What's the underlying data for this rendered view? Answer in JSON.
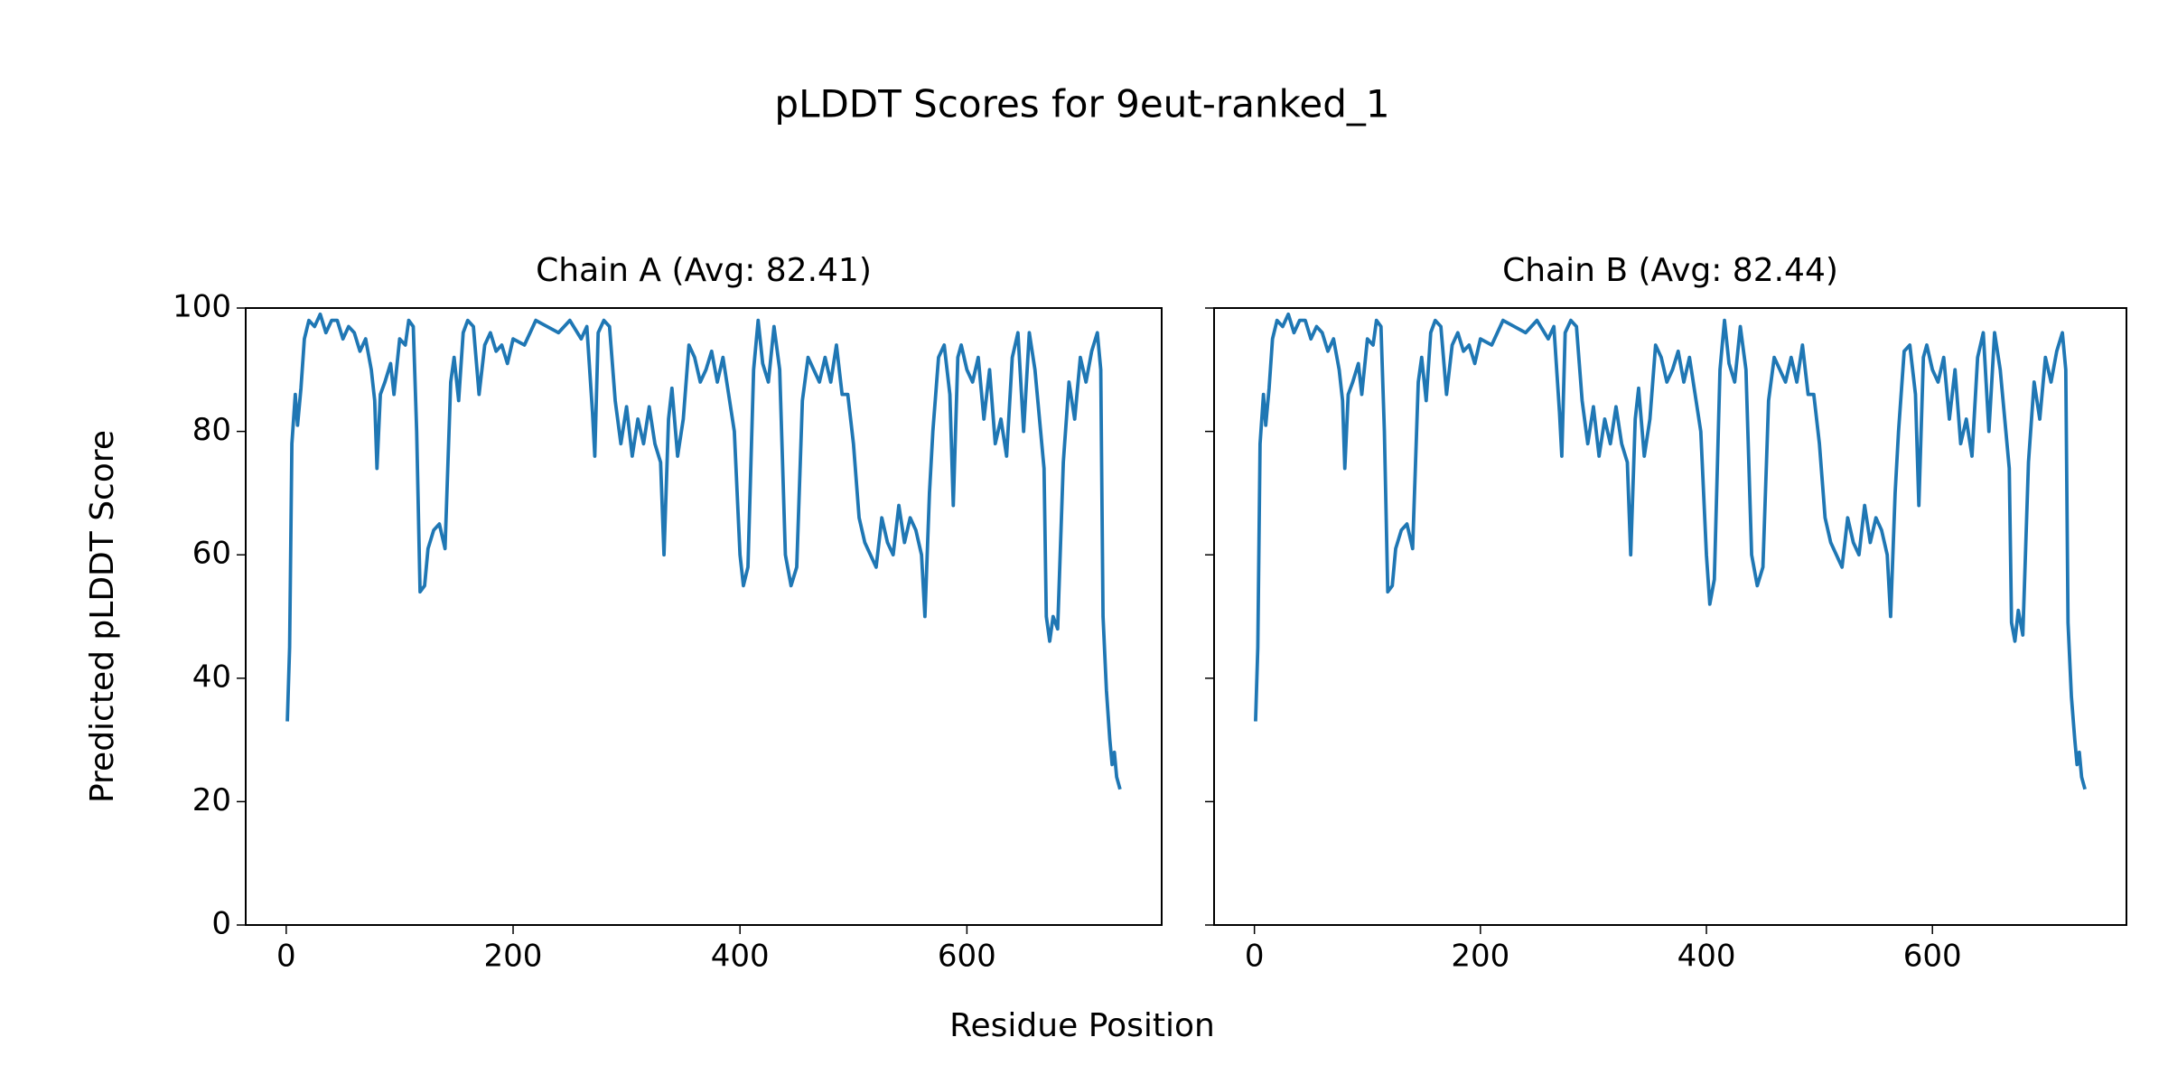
{
  "title": "pLDDT Scores for 9eut-ranked_1",
  "xlabel": "Residue Position",
  "chart_data": [
    {
      "type": "line",
      "title": "Chain A (Avg: 82.41)",
      "ylabel": "Predicted pLDDT Score",
      "color": "#1f77b4",
      "xlim": [
        -35.7,
        771.7
      ],
      "xticks": [
        0,
        200,
        400,
        600
      ],
      "ylim": [
        0,
        100
      ],
      "yticks": [
        0,
        20,
        40,
        60,
        80,
        100
      ],
      "show_ytick_labels": true,
      "x": [
        1,
        3,
        5,
        8,
        10,
        13,
        16,
        20,
        25,
        30,
        35,
        40,
        45,
        50,
        55,
        60,
        65,
        70,
        75,
        78,
        80,
        83,
        87,
        92,
        95,
        100,
        105,
        108,
        112,
        115,
        118,
        122,
        125,
        130,
        135,
        140,
        145,
        148,
        152,
        156,
        160,
        165,
        170,
        175,
        180,
        185,
        190,
        195,
        200,
        210,
        220,
        230,
        240,
        250,
        260,
        265,
        270,
        272,
        275,
        280,
        285,
        290,
        295,
        300,
        305,
        310,
        315,
        320,
        325,
        330,
        333,
        337,
        340,
        345,
        350,
        355,
        360,
        365,
        370,
        375,
        380,
        385,
        390,
        395,
        400,
        403,
        407,
        412,
        416,
        420,
        425,
        430,
        435,
        440,
        445,
        450,
        455,
        460,
        465,
        470,
        475,
        480,
        485,
        490,
        495,
        500,
        505,
        510,
        515,
        520,
        525,
        530,
        535,
        540,
        545,
        550,
        555,
        560,
        563,
        567,
        570,
        575,
        580,
        585,
        588,
        592,
        595,
        600,
        605,
        610,
        615,
        620,
        625,
        630,
        635,
        640,
        645,
        650,
        655,
        660,
        665,
        668,
        670,
        673,
        676,
        680,
        685,
        690,
        695,
        700,
        705,
        710,
        715,
        718,
        720,
        723,
        726,
        728,
        730,
        732,
        735
      ],
      "values": [
        33,
        45,
        78,
        86,
        81,
        87,
        95,
        98,
        97,
        99,
        96,
        98,
        98,
        95,
        97,
        96,
        93,
        95,
        90,
        85,
        74,
        86,
        88,
        91,
        86,
        95,
        94,
        98,
        97,
        80,
        54,
        55,
        61,
        64,
        65,
        61,
        88,
        92,
        85,
        96,
        98,
        97,
        86,
        94,
        96,
        93,
        94,
        91,
        95,
        94,
        98,
        97,
        96,
        98,
        95,
        97,
        83,
        76,
        96,
        98,
        97,
        85,
        78,
        84,
        76,
        82,
        78,
        84,
        78,
        75,
        60,
        82,
        87,
        76,
        82,
        94,
        92,
        88,
        90,
        93,
        88,
        92,
        86,
        80,
        60,
        55,
        58,
        90,
        98,
        91,
        88,
        97,
        90,
        60,
        55,
        58,
        85,
        92,
        90,
        88,
        92,
        88,
        94,
        86,
        86,
        78,
        66,
        62,
        60,
        58,
        66,
        62,
        60,
        68,
        62,
        66,
        64,
        60,
        50,
        70,
        80,
        92,
        94,
        86,
        68,
        92,
        94,
        90,
        88,
        92,
        82,
        90,
        78,
        82,
        76,
        92,
        96,
        80,
        96,
        90,
        80,
        74,
        50,
        46,
        50,
        48,
        75,
        88,
        82,
        92,
        88,
        93,
        96,
        90,
        50,
        38,
        30,
        26,
        28,
        24,
        22
      ]
    },
    {
      "type": "line",
      "title": "Chain B (Avg: 82.44)",
      "color": "#1f77b4",
      "xlim": [
        -35.7,
        771.7
      ],
      "xticks": [
        0,
        200,
        400,
        600
      ],
      "ylim": [
        0,
        100
      ],
      "yticks": [
        0,
        20,
        40,
        60,
        80,
        100
      ],
      "show_ytick_labels": false,
      "x": [
        1,
        3,
        5,
        8,
        10,
        13,
        16,
        20,
        25,
        30,
        35,
        40,
        45,
        50,
        55,
        60,
        65,
        70,
        75,
        78,
        80,
        83,
        87,
        92,
        95,
        100,
        105,
        108,
        112,
        115,
        118,
        122,
        125,
        130,
        135,
        140,
        145,
        148,
        152,
        156,
        160,
        165,
        170,
        175,
        180,
        185,
        190,
        195,
        200,
        210,
        220,
        230,
        240,
        250,
        260,
        265,
        270,
        272,
        275,
        280,
        285,
        290,
        295,
        300,
        305,
        310,
        315,
        320,
        325,
        330,
        333,
        337,
        340,
        345,
        350,
        355,
        360,
        365,
        370,
        375,
        380,
        385,
        390,
        395,
        400,
        403,
        407,
        412,
        416,
        420,
        425,
        430,
        435,
        440,
        445,
        450,
        455,
        460,
        465,
        470,
        475,
        480,
        485,
        490,
        495,
        500,
        505,
        510,
        515,
        520,
        525,
        530,
        535,
        540,
        545,
        550,
        555,
        560,
        563,
        567,
        570,
        575,
        580,
        585,
        588,
        592,
        595,
        600,
        605,
        610,
        615,
        620,
        625,
        630,
        635,
        640,
        645,
        650,
        655,
        660,
        665,
        668,
        670,
        673,
        676,
        680,
        685,
        690,
        695,
        700,
        705,
        710,
        715,
        718,
        720,
        723,
        726,
        728,
        730,
        732,
        735
      ],
      "values": [
        33,
        45,
        78,
        86,
        81,
        87,
        95,
        98,
        97,
        99,
        96,
        98,
        98,
        95,
        97,
        96,
        93,
        95,
        90,
        85,
        74,
        86,
        88,
        91,
        86,
        95,
        94,
        98,
        97,
        80,
        54,
        55,
        61,
        64,
        65,
        61,
        88,
        92,
        85,
        96,
        98,
        97,
        86,
        94,
        96,
        93,
        94,
        91,
        95,
        94,
        98,
        97,
        96,
        98,
        95,
        97,
        83,
        76,
        96,
        98,
        97,
        85,
        78,
        84,
        76,
        82,
        78,
        84,
        78,
        75,
        60,
        82,
        87,
        76,
        82,
        94,
        92,
        88,
        90,
        93,
        88,
        92,
        86,
        80,
        60,
        52,
        56,
        90,
        98,
        91,
        88,
        97,
        90,
        60,
        55,
        58,
        85,
        92,
        90,
        88,
        92,
        88,
        94,
        86,
        86,
        78,
        66,
        62,
        60,
        58,
        66,
        62,
        60,
        68,
        62,
        66,
        64,
        60,
        50,
        70,
        80,
        93,
        94,
        86,
        68,
        92,
        94,
        90,
        88,
        92,
        82,
        90,
        78,
        82,
        76,
        92,
        96,
        80,
        96,
        90,
        80,
        74,
        49,
        46,
        51,
        47,
        75,
        88,
        82,
        92,
        88,
        93,
        96,
        90,
        49,
        37,
        30,
        26,
        28,
        24,
        22
      ]
    }
  ]
}
